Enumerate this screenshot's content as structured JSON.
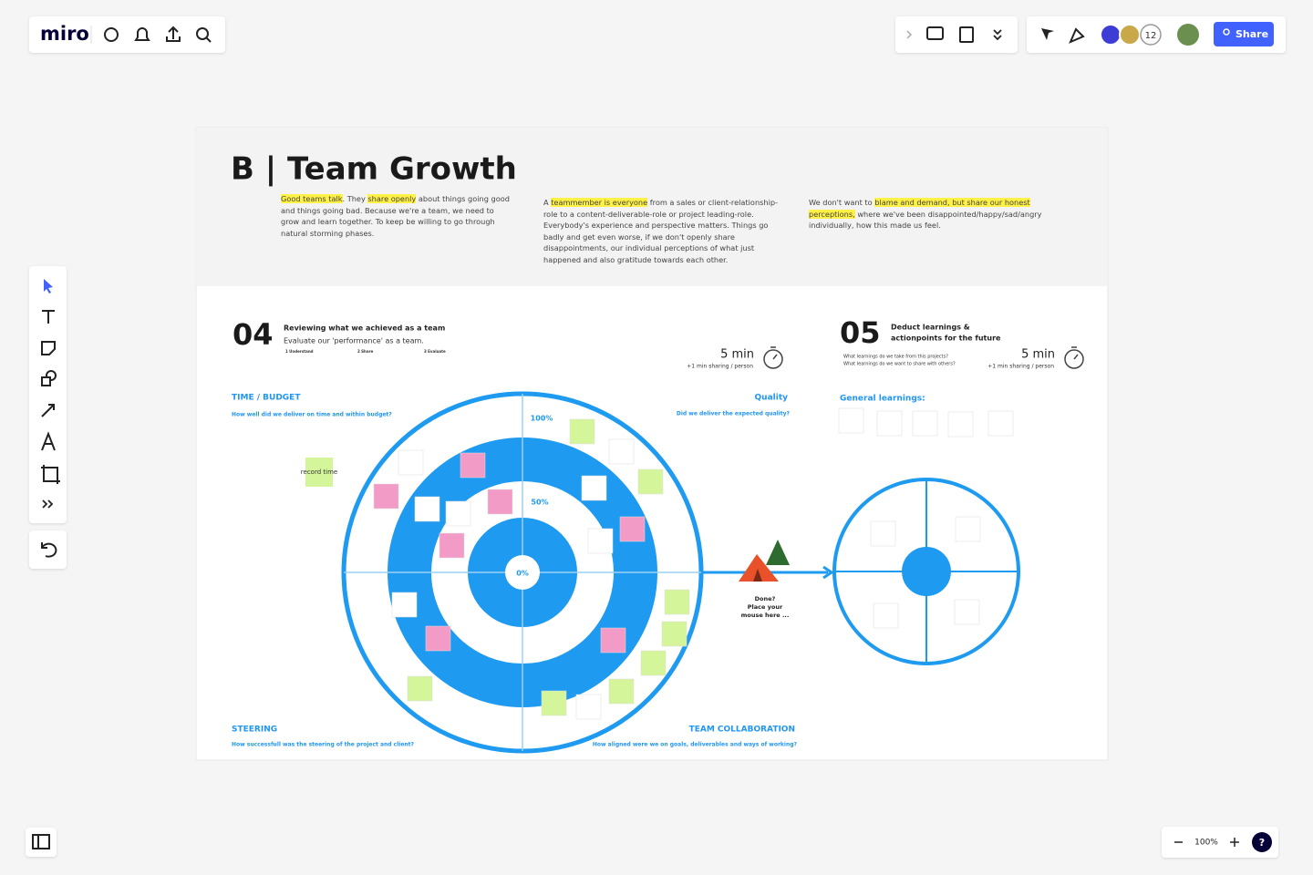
{
  "toolbar": {
    "logo": "miro",
    "avatar_count": "12",
    "share": "Share",
    "zoom": "100%",
    "help": "?"
  },
  "board": {
    "title": "B | Team Growth",
    "intro": [
      [
        {
          "text": "Good teams talk",
          "highlight": true
        },
        {
          "text": ". They ",
          "highlight": false
        },
        {
          "text": "share openly",
          "highlight": true
        },
        {
          "text": " about things going good and things going bad. Because we're a team, we need to grow and learn together. To keep be willing to go through natural storming phases.",
          "highlight": false
        }
      ],
      [
        {
          "text": "A ",
          "highlight": false
        },
        {
          "text": "teammember is everyone",
          "highlight": true
        },
        {
          "text": " from a sales or client-relationship-role to a content-deliverable-role or project leading-role. Everybody's experience and perspective matters. Things go badly and get even worse, if we don't openly share disappointments, our individual perceptions of what just happened and also gratitude towards each other.",
          "highlight": false
        }
      ],
      [
        {
          "text": "We don't want to ",
          "highlight": false
        },
        {
          "text": "blame and demand, but share our honest perceptions,",
          "highlight": true
        },
        {
          "text": " where we've been disappointed/happy/sad/angry individually, how this made us feel.",
          "highlight": false
        }
      ]
    ],
    "step04": {
      "number": "04",
      "heading": "Reviewing what we achieved as a team",
      "subheading": "Evaluate our 'performance' as a team.",
      "steps": [
        "1 Understand",
        "2 Share",
        "3 Evaluate"
      ],
      "time": "5 min",
      "time_note": "+1 min sharing / person"
    },
    "step05": {
      "number": "05",
      "heading": [
        "Deduct learnings &",
        "actionpoints for the future"
      ],
      "questions": [
        "What learnings do we take from this projects?",
        "What learnings do we want to share with others?"
      ],
      "time": "5 min",
      "time_note": "+1 min sharing / person",
      "learnings_title": "General learnings:"
    },
    "quadrants": [
      {
        "title": "TIME / BUDGET",
        "question": "How well did we deliver on time and within budget?"
      },
      {
        "title": "Quality",
        "question": "Did we deliver the expected quality?"
      },
      {
        "title": "STEERING",
        "question": "How successfull was the steering of the project and client?"
      },
      {
        "title": "TEAM COLLABORATION",
        "question": "How aligned were we on goals, deliverables and ways of working?"
      }
    ],
    "rings": [
      "100%",
      "50%",
      "0%"
    ],
    "sticky": "record time",
    "prompt": [
      "Done?",
      "Place your",
      "mouse here ..."
    ]
  }
}
